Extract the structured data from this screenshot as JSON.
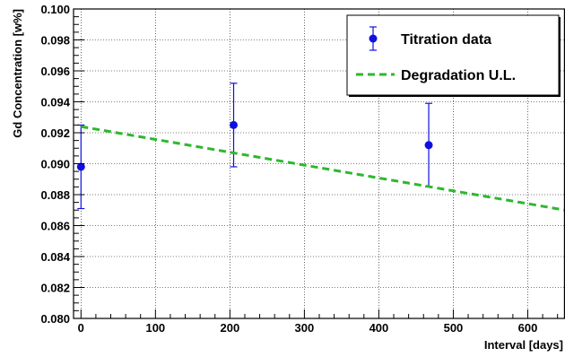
{
  "chart_data": {
    "type": "scatter",
    "xlabel": "Interval [days]",
    "ylabel": "Gd Concentration [w%]",
    "xlim": [
      -10,
      650
    ],
    "ylim": [
      0.08,
      0.1
    ],
    "x_ticks": [
      0,
      100,
      200,
      300,
      400,
      500,
      600
    ],
    "x_tick_labels": [
      "0",
      "100",
      "200",
      "300",
      "400",
      "500",
      "600"
    ],
    "y_ticks": [
      0.08,
      0.082,
      0.084,
      0.086,
      0.088,
      0.09,
      0.092,
      0.094,
      0.096,
      0.098,
      0.1
    ],
    "y_tick_labels": [
      "0.080",
      "0.082",
      "0.084",
      "0.086",
      "0.088",
      "0.090",
      "0.092",
      "0.094",
      "0.096",
      "0.098",
      "0.100"
    ],
    "grid": true,
    "legend_position": "top-right",
    "series": [
      {
        "name": "Titration data",
        "kind": "points-with-errorbars",
        "color": "#1010e0",
        "points": [
          {
            "x": 0,
            "y": 0.0898,
            "err": 0.0027
          },
          {
            "x": 205,
            "y": 0.0925,
            "err": 0.0027
          },
          {
            "x": 467,
            "y": 0.0912,
            "err": 0.0027
          }
        ]
      },
      {
        "name": "Degradation U.L.",
        "kind": "dashed-line",
        "color": "#2db82d",
        "line": {
          "x": [
            0,
            650
          ],
          "y": [
            0.0924,
            0.087
          ]
        }
      }
    ]
  }
}
